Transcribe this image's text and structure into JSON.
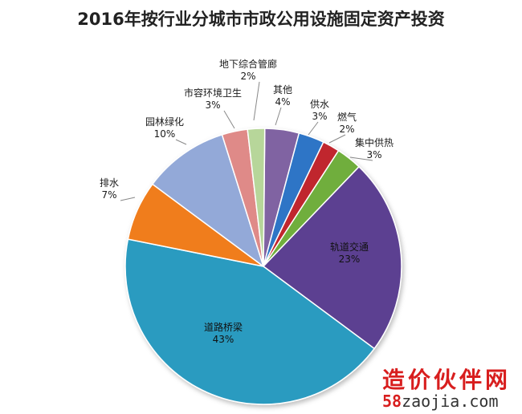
{
  "title": "2016年按行业分城市市政公用设施固定资产投资",
  "watermark": {
    "brand": "造价伙伴网",
    "num": "58",
    "domain": "zaojia.com"
  },
  "chart_data": {
    "type": "pie",
    "title": "2016年按行业分城市市政公用设施固定资产投资",
    "slices": [
      {
        "name": "其他",
        "value": 4,
        "label": "4%",
        "color": "#8064a2"
      },
      {
        "name": "供水",
        "value": 3,
        "label": "3%",
        "color": "#2e74c6"
      },
      {
        "name": "燃气",
        "value": 2,
        "label": "2%",
        "color": "#c0272d"
      },
      {
        "name": "集中供热",
        "value": 3,
        "label": "3%",
        "color": "#6fae3c"
      },
      {
        "name": "轨道交通",
        "value": 23,
        "label": "23%",
        "color": "#5b3f91"
      },
      {
        "name": "道路桥梁",
        "value": 43,
        "label": "43%",
        "color": "#2a9bc0"
      },
      {
        "name": "排水",
        "value": 7,
        "label": "7%",
        "color": "#f07d1d"
      },
      {
        "name": "园林绿化",
        "value": 10,
        "label": "10%",
        "color": "#93a9d8"
      },
      {
        "name": "市容环境卫生",
        "value": 3,
        "label": "3%",
        "color": "#df8a88"
      },
      {
        "name": "地下综合管廊",
        "value": 2,
        "label": "2%",
        "color": "#b7d69a"
      }
    ]
  }
}
